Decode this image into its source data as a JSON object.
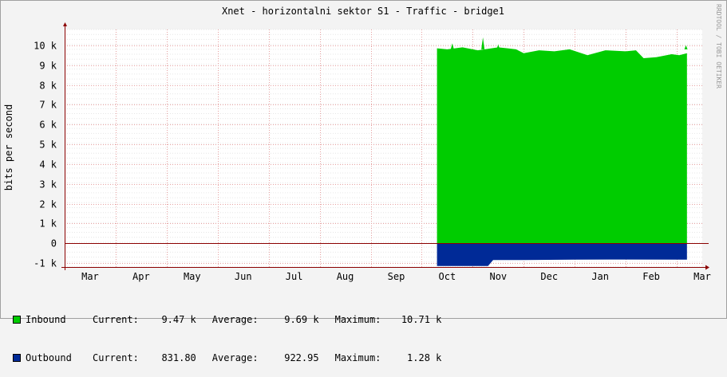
{
  "chart_data": {
    "type": "area",
    "title": "Xnet - horizontalni sektor S1 - Traffic - bridge1",
    "watermark": "RRDTOOL / TOBI OETIKER",
    "ylabel": "bits per second",
    "ylim": [
      -1200,
      10800
    ],
    "y_ticks": [
      {
        "value": -1000,
        "label": "-1 k"
      },
      {
        "value": 0,
        "label": "0"
      },
      {
        "value": 1000,
        "label": "1 k"
      },
      {
        "value": 2000,
        "label": "2 k"
      },
      {
        "value": 3000,
        "label": "3 k"
      },
      {
        "value": 4000,
        "label": "4 k"
      },
      {
        "value": 5000,
        "label": "5 k"
      },
      {
        "value": 6000,
        "label": "6 k"
      },
      {
        "value": 7000,
        "label": "7 k"
      },
      {
        "value": 8000,
        "label": "8 k"
      },
      {
        "value": 9000,
        "label": "9 k"
      },
      {
        "value": 10000,
        "label": "10 k"
      }
    ],
    "xlim": [
      0,
      12.5
    ],
    "x_ticks": [
      "Mar",
      "Apr",
      "May",
      "Jun",
      "Jul",
      "Aug",
      "Sep",
      "Oct",
      "Nov",
      "Dec",
      "Jan",
      "Feb",
      "Mar"
    ],
    "grid": true,
    "series": [
      {
        "name": "Inbound",
        "color": "#00cc00",
        "x": [
          7.3,
          7.5,
          7.8,
          8.1,
          8.5,
          8.85,
          9.0,
          9.3,
          9.6,
          9.9,
          10.25,
          10.6,
          11.0,
          11.2,
          11.35,
          11.6,
          11.9,
          12.05,
          12.2
        ],
        "y": [
          9850,
          9800,
          9900,
          9750,
          9900,
          9800,
          9600,
          9750,
          9700,
          9800,
          9500,
          9750,
          9700,
          9750,
          9350,
          9400,
          9550,
          9500,
          9600
        ]
      },
      {
        "name": "Outbound",
        "color": "#002a97",
        "x": [
          7.3,
          8.3,
          8.4,
          9.0,
          10.0,
          11.0,
          12.2
        ],
        "y": [
          -1150,
          -1150,
          -850,
          -850,
          -830,
          -820,
          -830
        ]
      }
    ],
    "spikes": [
      {
        "x": 7.6,
        "y": 10100
      },
      {
        "x": 8.2,
        "y": 10400
      },
      {
        "x": 8.5,
        "y": 10050
      },
      {
        "x": 12.18,
        "y": 10000
      }
    ],
    "legend": [
      {
        "name": "Inbound",
        "color": "#00cc00",
        "current_label": "Current:",
        "current": "9.47 k",
        "average_label": "Average:",
        "average": "9.69 k",
        "maximum_label": "Maximum:",
        "maximum": "10.71 k"
      },
      {
        "name": "Outbound",
        "color": "#002a97",
        "current_label": "Current:",
        "current": "831.80",
        "average_label": "Average:",
        "average": "922.95",
        "maximum_label": "Maximum:",
        "maximum": "1.28 k"
      }
    ]
  }
}
